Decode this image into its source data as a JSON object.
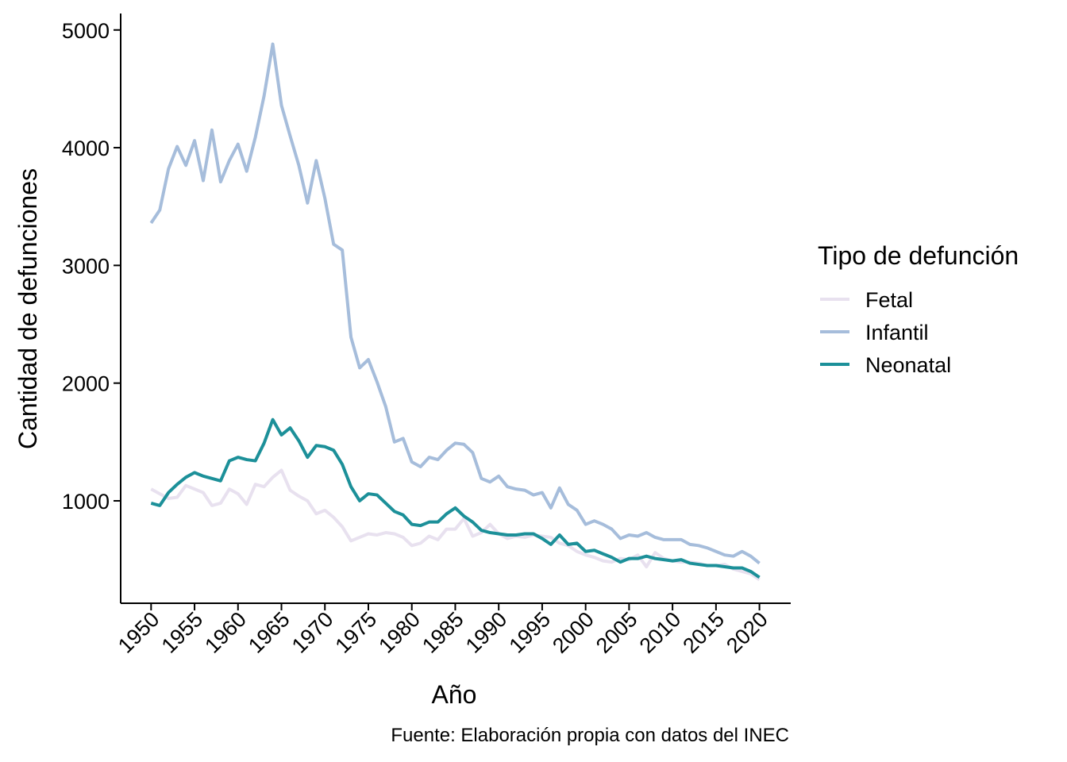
{
  "chart_data": {
    "type": "line",
    "title": "",
    "xlabel": "Año",
    "ylabel": "Cantidad de defunciones",
    "caption": "Fuente: Elaboración propia con datos del INEC",
    "xlim": [
      1946.5,
      2023.6
    ],
    "ylim": [
      130,
      5140
    ],
    "xticks": [
      "1950",
      "1955",
      "1960",
      "1965",
      "1970",
      "1975",
      "1980",
      "1985",
      "1990",
      "1995",
      "2000",
      "2005",
      "2010",
      "2015",
      "2020"
    ],
    "yticks": [
      "1000",
      "2000",
      "3000",
      "4000",
      "5000"
    ],
    "grid": false,
    "legend": {
      "title": "Tipo de defunción",
      "position": "right"
    },
    "x": [
      1950,
      1951,
      1952,
      1953,
      1954,
      1955,
      1956,
      1957,
      1958,
      1959,
      1960,
      1961,
      1962,
      1963,
      1964,
      1965,
      1966,
      1967,
      1968,
      1969,
      1970,
      1971,
      1972,
      1973,
      1974,
      1975,
      1976,
      1977,
      1978,
      1979,
      1980,
      1981,
      1982,
      1983,
      1984,
      1985,
      1986,
      1987,
      1988,
      1989,
      1990,
      1991,
      1992,
      1993,
      1994,
      1995,
      1996,
      1997,
      1998,
      1999,
      2000,
      2001,
      2002,
      2003,
      2004,
      2005,
      2006,
      2007,
      2008,
      2009,
      2010,
      2011,
      2012,
      2013,
      2014,
      2015,
      2016,
      2017,
      2018,
      2019,
      2020
    ],
    "series": [
      {
        "name": "Fetal",
        "color": "#e8e1ef",
        "values": [
          1100,
          1060,
          1020,
          1030,
          1130,
          1100,
          1070,
          960,
          980,
          1100,
          1060,
          970,
          1140,
          1120,
          1200,
          1260,
          1090,
          1040,
          1000,
          890,
          920,
          860,
          780,
          660,
          690,
          720,
          710,
          730,
          720,
          690,
          620,
          640,
          700,
          670,
          760,
          760,
          850,
          700,
          730,
          800,
          720,
          680,
          700,
          690,
          710,
          700,
          690,
          640,
          620,
          570,
          540,
          520,
          490,
          480,
          510,
          500,
          540,
          440,
          560,
          510,
          490,
          480,
          480,
          470,
          450,
          450,
          460,
          420,
          400,
          380,
          330
        ]
      },
      {
        "name": "Infantil",
        "color": "#a6bddb",
        "values": [
          3360,
          3470,
          3820,
          4010,
          3850,
          4060,
          3720,
          4150,
          3710,
          3890,
          4030,
          3800,
          4090,
          4440,
          4880,
          4360,
          4100,
          3850,
          3530,
          3890,
          3570,
          3180,
          3130,
          2390,
          2130,
          2200,
          2010,
          1800,
          1500,
          1530,
          1330,
          1290,
          1370,
          1350,
          1430,
          1490,
          1480,
          1410,
          1190,
          1160,
          1210,
          1120,
          1100,
          1090,
          1050,
          1070,
          940,
          1110,
          970,
          920,
          800,
          830,
          800,
          760,
          680,
          710,
          700,
          730,
          690,
          670,
          670,
          670,
          630,
          620,
          600,
          570,
          540,
          530,
          570,
          530,
          470
        ]
      },
      {
        "name": "Neonatal",
        "color": "#1c9099",
        "values": [
          980,
          960,
          1070,
          1140,
          1200,
          1240,
          1210,
          1190,
          1170,
          1340,
          1370,
          1350,
          1340,
          1490,
          1690,
          1560,
          1620,
          1510,
          1370,
          1470,
          1460,
          1430,
          1310,
          1120,
          1000,
          1060,
          1050,
          980,
          910,
          880,
          800,
          790,
          820,
          820,
          890,
          940,
          870,
          820,
          750,
          730,
          720,
          710,
          710,
          720,
          720,
          680,
          630,
          710,
          630,
          640,
          570,
          580,
          550,
          520,
          480,
          510,
          510,
          530,
          510,
          500,
          490,
          500,
          470,
          460,
          450,
          450,
          440,
          430,
          430,
          400,
          350
        ]
      }
    ]
  }
}
